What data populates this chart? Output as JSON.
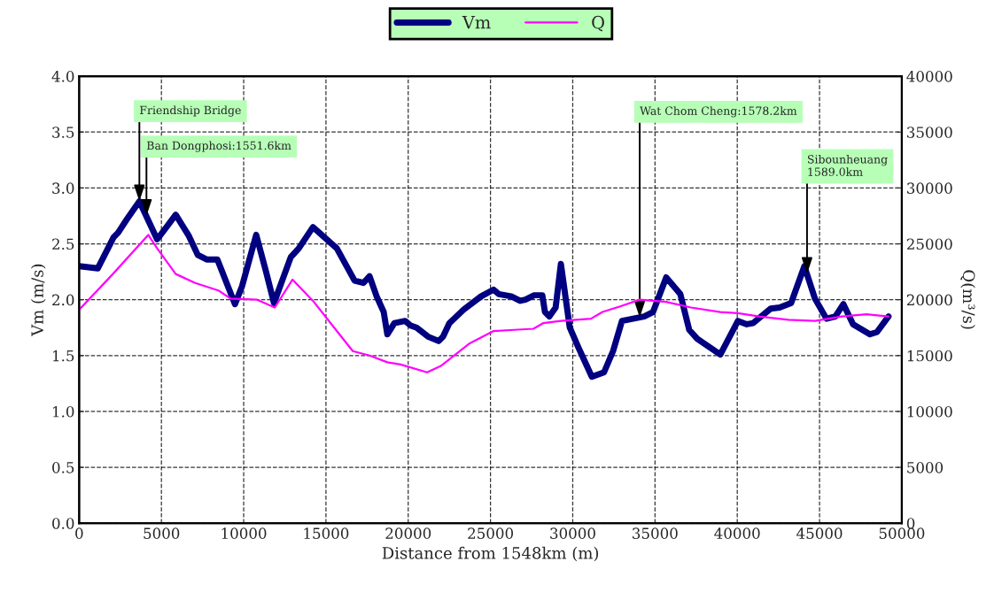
{
  "chart_data": {
    "type": "line",
    "xlabel": "Distance from 1548km (m)",
    "ylabel": "Vm (m/s)",
    "y2label": "Q(m³/s)",
    "xlim": [
      0,
      50000
    ],
    "xticks": [
      0,
      5000,
      10000,
      15000,
      20000,
      25000,
      30000,
      35000,
      40000,
      45000,
      50000
    ],
    "ylim": [
      0.0,
      4.0
    ],
    "yticks": [
      {
        "value": 0,
        "label": "0.0"
      },
      0.5,
      {
        "value": 1,
        "label": "1.0"
      },
      1.5,
      {
        "value": 2,
        "label": "2.0"
      },
      2.5,
      {
        "value": 3,
        "label": "3.0"
      },
      3.5,
      {
        "value": 4,
        "label": "4.0"
      }
    ],
    "y2lim": [
      0,
      40000
    ],
    "y2ticks": [
      0,
      5000,
      10000,
      15000,
      20000,
      25000,
      30000,
      35000,
      40000
    ],
    "grid": true,
    "legend": "top",
    "series": [
      {
        "name": "Vm",
        "color": "#000080",
        "x": [
          0,
          1130,
          2100,
          2370,
          2900,
          3660,
          4740,
          4900,
          5870,
          6670,
          7210,
          7750,
          8400,
          8830,
          9470,
          9900,
          10760,
          11360,
          11840,
          12860,
          13350,
          14210,
          15660,
          16740,
          17280,
          17650,
          18080,
          18510,
          18730,
          19160,
          19810,
          20130,
          20510,
          21200,
          21850,
          22120,
          22500,
          23360,
          24430,
          25190,
          25510,
          26260,
          26800,
          27120,
          27660,
          28150,
          28310,
          28580,
          28960,
          29280,
          29820,
          30350,
          31160,
          31900,
          32450,
          32990,
          34340,
          34880,
          35680,
          36540,
          37080,
          37570,
          38160,
          38970,
          40040,
          40580,
          40960,
          42030,
          42570,
          43270,
          44080,
          44720,
          45420,
          45960,
          46450,
          47040,
          48060,
          48490,
          49190
        ],
        "values": [
          2.3,
          2.28,
          2.56,
          2.6,
          2.72,
          2.88,
          2.54,
          2.57,
          2.76,
          2.57,
          2.4,
          2.36,
          2.36,
          2.2,
          1.96,
          2.12,
          2.58,
          2.25,
          1.97,
          2.38,
          2.46,
          2.65,
          2.46,
          2.17,
          2.15,
          2.21,
          2.03,
          1.89,
          1.69,
          1.79,
          1.81,
          1.77,
          1.75,
          1.67,
          1.63,
          1.67,
          1.79,
          1.91,
          2.03,
          2.09,
          2.05,
          2.03,
          1.99,
          2.0,
          2.04,
          2.04,
          1.89,
          1.85,
          1.93,
          2.32,
          1.75,
          1.57,
          1.31,
          1.35,
          1.54,
          1.81,
          1.85,
          1.89,
          2.2,
          2.05,
          1.73,
          1.65,
          1.59,
          1.51,
          1.81,
          1.78,
          1.79,
          1.92,
          1.93,
          1.97,
          2.3,
          2.01,
          1.83,
          1.85,
          1.96,
          1.78,
          1.69,
          1.71,
          1.85
        ]
      },
      {
        "name": "Q",
        "color": "#ff00ff",
        "axis": "y2",
        "x": [
          0,
          2050,
          4200,
          4740,
          5870,
          7050,
          8500,
          9200,
          10820,
          11890,
          12970,
          14210,
          15500,
          16630,
          17650,
          18730,
          19540,
          21150,
          22010,
          23740,
          25190,
          26430,
          27610,
          28200,
          29280,
          31110,
          31810,
          32880,
          34070,
          35680,
          37190,
          38970,
          40040,
          41330,
          43110,
          44720,
          46340,
          47850,
          49190
        ],
        "values": [
          19100,
          22300,
          25800,
          24600,
          22300,
          21500,
          20800,
          20100,
          20000,
          19300,
          21800,
          19900,
          17500,
          15400,
          15000,
          14400,
          14200,
          13500,
          14100,
          16100,
          17200,
          17300,
          17400,
          17900,
          18100,
          18300,
          18900,
          19400,
          20000,
          19800,
          19300,
          18900,
          18800,
          18500,
          18200,
          18100,
          18500,
          18700,
          18500
        ]
      }
    ],
    "annotations": [
      {
        "text": "Friendship Bridge",
        "x": 3660,
        "y": 2.88
      },
      {
        "text": "Ban Dongphosi:1551.6km",
        "x": 4090,
        "y": 2.75
      },
      {
        "text": "Wat Chom Cheng:1578.2km",
        "x": 34070,
        "y": 1.84
      },
      {
        "text": "Sibounheuang\n1589.0km",
        "x": 44240,
        "y": 2.23
      }
    ]
  }
}
